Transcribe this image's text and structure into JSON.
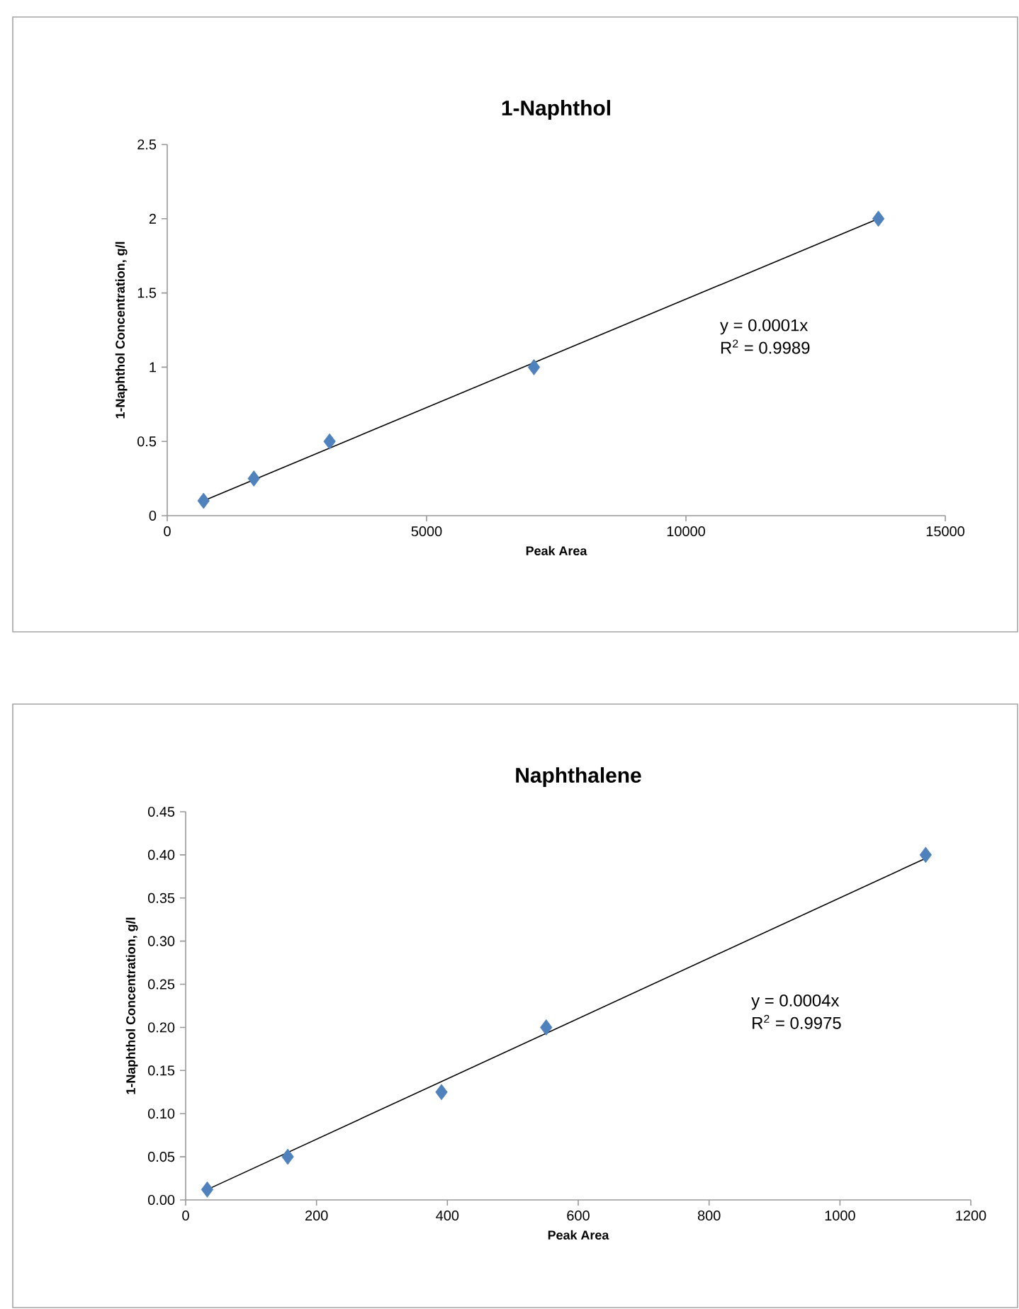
{
  "chart_data": [
    {
      "type": "scatter",
      "title": "1-Naphthol",
      "xlabel": "Peak Area",
      "ylabel": "1-Naphthol Concentration, g/l",
      "xlim": [
        0,
        15000
      ],
      "xticks": [
        0,
        5000,
        10000,
        15000
      ],
      "ylim": [
        0,
        2.5
      ],
      "yticks": [
        0,
        0.5,
        1,
        1.5,
        2,
        2.5
      ],
      "grid": false,
      "marker": "diamond",
      "x": [
        700,
        1670,
        3130,
        7070,
        13710
      ],
      "series": [
        {
          "color": "#4f81bd",
          "values": [
            0.1,
            0.25,
            0.5,
            1,
            2
          ]
        },
        {
          "type": "line",
          "color": "#000000",
          "marker": "none",
          "x": [
            700,
            13710
          ],
          "values": [
            0.1,
            2
          ]
        }
      ],
      "annotations": [
        "y = 0.0001x",
        "R$^{2}$ = 0.9989"
      ]
    },
    {
      "type": "scatter",
      "title": "Naphthalene",
      "xlabel": "Peak Area",
      "ylabel": "1-Naphthol Concentration, g/l",
      "xlim": [
        0,
        1200
      ],
      "xticks": [
        0,
        200,
        400,
        600,
        800,
        1000,
        1200
      ],
      "ylim": [
        0,
        0.45
      ],
      "yticks": [
        {
          "value": 0,
          "label": "0.00"
        },
        {
          "value": 0.05,
          "label": "0.05"
        },
        {
          "value": 0.1,
          "label": "0.10"
        },
        {
          "value": 0.15,
          "label": "0.15"
        },
        {
          "value": 0.2,
          "label": "0.20"
        },
        {
          "value": 0.25,
          "label": "0.25"
        },
        {
          "value": 0.3,
          "label": "0.30"
        },
        {
          "value": 0.35,
          "label": "0.35"
        },
        {
          "value": 0.4,
          "label": "0.40"
        },
        {
          "value": 0.45,
          "label": "0.45"
        }
      ],
      "grid": false,
      "marker": "diamond",
      "x": [
        33,
        156,
        391,
        551,
        1131
      ],
      "series": [
        {
          "color": "#4f81bd",
          "values": [
            0.012,
            0.05,
            0.125,
            0.2,
            0.4
          ]
        },
        {
          "type": "line",
          "color": "#000000",
          "marker": "none",
          "x": [
            33,
            1131
          ],
          "values": [
            0.012,
            0.396
          ]
        }
      ],
      "annotations": [
        "y = 0.0004x",
        "R$^{2}$ = 0.9975"
      ]
    }
  ]
}
